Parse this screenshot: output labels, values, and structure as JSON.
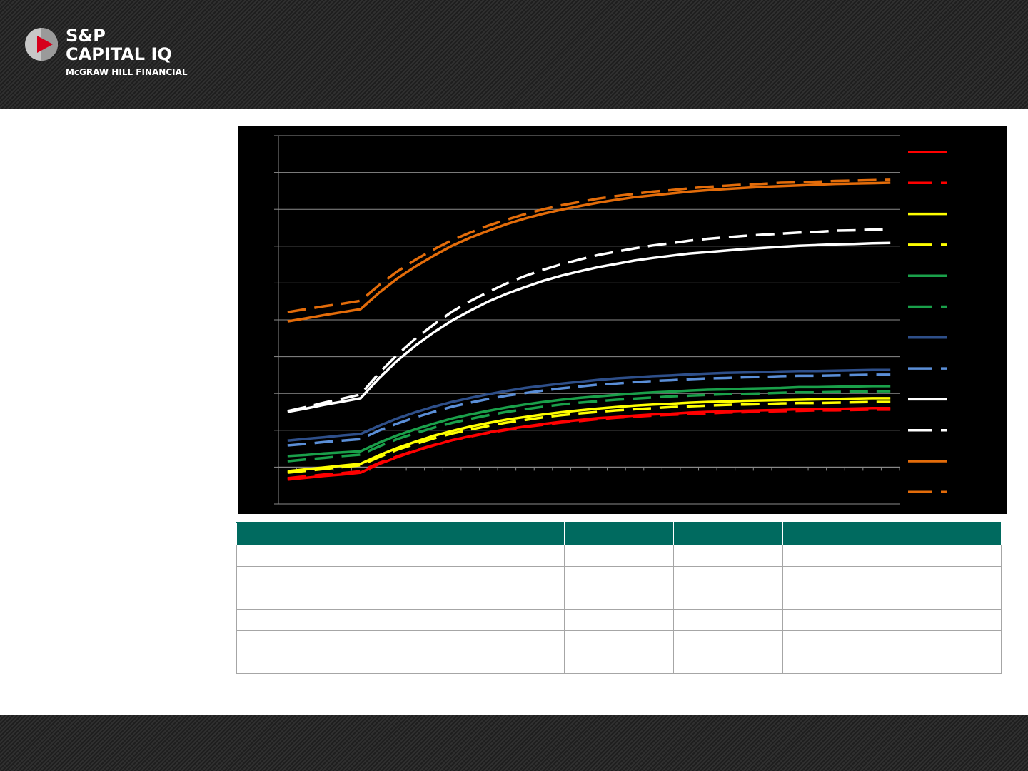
{
  "header": {
    "logo_line1": "S&P",
    "logo_line2": "CAPITAL IQ",
    "logo_line3": "McGRAW HILL FINANCIAL"
  },
  "chart_data": {
    "type": "line",
    "categories": [
      null,
      null,
      null,
      null,
      null,
      null,
      null,
      null,
      null,
      null,
      null,
      null,
      null,
      null,
      null,
      null,
      null,
      null,
      null,
      null,
      null,
      null,
      null,
      null,
      null,
      null,
      null,
      null,
      null,
      null,
      null,
      null,
      null,
      null
    ],
    "ylim": [
      0,
      10
    ],
    "yticks": [
      0,
      1,
      2,
      3,
      4,
      5,
      6,
      7,
      8,
      9,
      10
    ],
    "grid": true,
    "xaxis_crosses": 1,
    "legend": "right",
    "series": [
      {
        "color": "#ff0000",
        "style": "solid",
        "values": [
          0.66,
          0.71,
          0.76,
          0.8,
          0.85,
          1.08,
          1.27,
          1.44,
          1.59,
          1.73,
          1.84,
          1.94,
          2.03,
          2.1,
          2.17,
          2.23,
          2.28,
          2.33,
          2.36,
          2.4,
          2.43,
          2.45,
          2.48,
          2.5,
          2.51,
          2.53,
          2.54,
          2.55,
          2.57,
          2.57,
          2.58,
          2.59,
          2.6,
          2.6
        ]
      },
      {
        "color": "#ff0000",
        "style": "dashed",
        "values": [
          0.7,
          0.75,
          0.8,
          0.84,
          0.89,
          1.11,
          1.29,
          1.46,
          1.6,
          1.73,
          1.83,
          1.93,
          2.01,
          2.09,
          2.15,
          2.21,
          2.25,
          2.3,
          2.34,
          2.37,
          2.4,
          2.42,
          2.44,
          2.46,
          2.48,
          2.49,
          2.51,
          2.52,
          2.53,
          2.54,
          2.54,
          2.55,
          2.56,
          2.56
        ]
      },
      {
        "color": "#ffff00",
        "style": "solid",
        "values": [
          0.89,
          0.94,
          0.99,
          1.04,
          1.09,
          1.32,
          1.52,
          1.69,
          1.85,
          1.98,
          2.1,
          2.2,
          2.29,
          2.36,
          2.43,
          2.49,
          2.54,
          2.59,
          2.63,
          2.67,
          2.7,
          2.72,
          2.75,
          2.77,
          2.78,
          2.8,
          2.81,
          2.82,
          2.83,
          2.84,
          2.85,
          2.86,
          2.87,
          2.87
        ]
      },
      {
        "color": "#ffff00",
        "style": "dashed",
        "values": [
          0.85,
          0.9,
          0.95,
          1.0,
          1.05,
          1.27,
          1.47,
          1.63,
          1.78,
          1.91,
          2.02,
          2.12,
          2.21,
          2.28,
          2.35,
          2.41,
          2.46,
          2.5,
          2.54,
          2.57,
          2.6,
          2.63,
          2.65,
          2.67,
          2.69,
          2.7,
          2.71,
          2.73,
          2.74,
          2.74,
          2.75,
          2.76,
          2.77,
          2.77
        ]
      },
      {
        "color": "#1aa04a",
        "style": "solid",
        "values": [
          1.3,
          1.33,
          1.37,
          1.4,
          1.43,
          1.66,
          1.86,
          2.03,
          2.18,
          2.32,
          2.43,
          2.53,
          2.62,
          2.7,
          2.77,
          2.83,
          2.88,
          2.92,
          2.96,
          3.0,
          3.03,
          3.05,
          3.08,
          3.1,
          3.11,
          3.13,
          3.14,
          3.15,
          3.17,
          3.17,
          3.18,
          3.19,
          3.2,
          3.2
        ]
      },
      {
        "color": "#1aa04a",
        "style": "dashed",
        "values": [
          1.16,
          1.21,
          1.25,
          1.3,
          1.34,
          1.56,
          1.76,
          1.92,
          2.07,
          2.2,
          2.31,
          2.41,
          2.5,
          2.57,
          2.64,
          2.7,
          2.75,
          2.79,
          2.83,
          2.86,
          2.89,
          2.92,
          2.94,
          2.96,
          2.98,
          2.99,
          3.0,
          3.02,
          3.03,
          3.03,
          3.04,
          3.05,
          3.06,
          3.06
        ]
      },
      {
        "color": "#2e4f8a",
        "style": "solid",
        "values": [
          1.72,
          1.77,
          1.81,
          1.86,
          1.9,
          2.12,
          2.32,
          2.49,
          2.64,
          2.77,
          2.88,
          2.98,
          3.07,
          3.15,
          3.21,
          3.27,
          3.32,
          3.37,
          3.41,
          3.44,
          3.47,
          3.49,
          3.52,
          3.54,
          3.56,
          3.57,
          3.58,
          3.6,
          3.61,
          3.61,
          3.62,
          3.63,
          3.64,
          3.64
        ]
      },
      {
        "color": "#5b8fd8",
        "style": "dashed",
        "values": [
          1.59,
          1.63,
          1.68,
          1.72,
          1.76,
          1.99,
          2.18,
          2.35,
          2.5,
          2.64,
          2.75,
          2.85,
          2.94,
          3.01,
          3.08,
          3.14,
          3.19,
          3.24,
          3.27,
          3.31,
          3.34,
          3.36,
          3.39,
          3.41,
          3.42,
          3.44,
          3.45,
          3.47,
          3.48,
          3.48,
          3.49,
          3.5,
          3.51,
          3.51
        ]
      },
      {
        "color": "#ffffff",
        "style": "solid",
        "values": [
          2.5,
          2.59,
          2.69,
          2.78,
          2.87,
          3.41,
          3.89,
          4.3,
          4.66,
          4.98,
          5.25,
          5.5,
          5.71,
          5.89,
          6.06,
          6.2,
          6.32,
          6.43,
          6.52,
          6.61,
          6.68,
          6.74,
          6.8,
          6.84,
          6.88,
          6.92,
          6.95,
          6.98,
          7.01,
          7.03,
          7.05,
          7.06,
          7.08,
          7.09
        ]
      },
      {
        "color": "#ffffff",
        "style": "dashed",
        "values": [
          2.52,
          2.63,
          2.75,
          2.86,
          2.97,
          3.55,
          4.05,
          4.49,
          4.87,
          5.22,
          5.51,
          5.76,
          5.99,
          6.19,
          6.36,
          6.51,
          6.64,
          6.76,
          6.85,
          6.94,
          7.02,
          7.08,
          7.15,
          7.2,
          7.24,
          7.28,
          7.31,
          7.34,
          7.37,
          7.39,
          7.42,
          7.43,
          7.45,
          7.46
        ]
      },
      {
        "color": "#e36c0a",
        "style": "solid",
        "values": [
          4.96,
          5.04,
          5.13,
          5.21,
          5.29,
          5.73,
          6.12,
          6.45,
          6.74,
          7.01,
          7.23,
          7.42,
          7.6,
          7.75,
          7.88,
          7.99,
          8.09,
          8.18,
          8.26,
          8.33,
          8.38,
          8.43,
          8.48,
          8.52,
          8.55,
          8.58,
          8.61,
          8.63,
          8.65,
          8.67,
          8.69,
          8.7,
          8.71,
          8.72
        ]
      },
      {
        "color": "#e36c0a",
        "style": "dashed",
        "values": [
          5.21,
          5.29,
          5.37,
          5.44,
          5.52,
          5.94,
          6.31,
          6.63,
          6.91,
          7.16,
          7.37,
          7.56,
          7.72,
          7.87,
          8.0,
          8.11,
          8.2,
          8.29,
          8.36,
          8.42,
          8.48,
          8.52,
          8.57,
          8.61,
          8.64,
          8.67,
          8.69,
          8.72,
          8.73,
          8.75,
          8.77,
          8.78,
          8.79,
          8.8
        ]
      }
    ]
  }
}
